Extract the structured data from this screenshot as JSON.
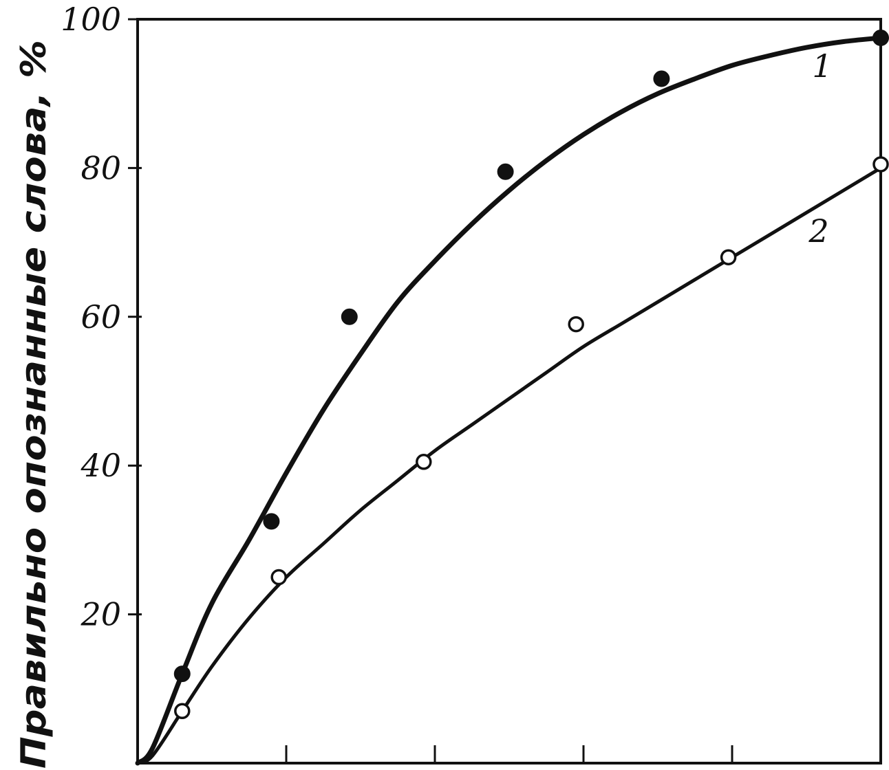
{
  "chart_data": {
    "type": "line",
    "title": "",
    "xlabel": "",
    "ylabel": "Правильно опознанные слова, %",
    "xlim": [
      0,
      10
    ],
    "ylim": [
      0,
      100
    ],
    "x_ticks": [
      0,
      2,
      4,
      6,
      8,
      10
    ],
    "y_ticks": [
      {
        "value": 20,
        "label": "20"
      },
      {
        "value": 40,
        "label": "40"
      },
      {
        "value": 60,
        "label": "60"
      },
      {
        "value": 80,
        "label": "80"
      },
      {
        "value": 100,
        "label": "100"
      }
    ],
    "grid": false,
    "series": [
      {
        "name": "1",
        "marker": "filled-circle",
        "color": "#111111",
        "points": [
          [
            0.6,
            12
          ],
          [
            1.8,
            32.5
          ],
          [
            2.85,
            60
          ],
          [
            4.95,
            79.5
          ],
          [
            7.05,
            92
          ],
          [
            10,
            97.5
          ]
        ],
        "curve": [
          [
            0,
            0
          ],
          [
            0.2,
            2
          ],
          [
            0.6,
            12
          ],
          [
            1,
            21.5
          ],
          [
            1.5,
            30
          ],
          [
            2,
            39
          ],
          [
            2.5,
            47.5
          ],
          [
            3,
            55
          ],
          [
            3.5,
            62
          ],
          [
            4,
            67.5
          ],
          [
            4.5,
            72.5
          ],
          [
            5,
            77
          ],
          [
            5.5,
            81
          ],
          [
            6,
            84.5
          ],
          [
            6.5,
            87.5
          ],
          [
            7,
            90
          ],
          [
            7.5,
            92
          ],
          [
            8,
            93.8
          ],
          [
            8.5,
            95.1
          ],
          [
            9,
            96.2
          ],
          [
            9.5,
            97
          ],
          [
            10,
            97.5
          ]
        ]
      },
      {
        "name": "2",
        "marker": "open-circle",
        "color": "#111111",
        "points": [
          [
            0.6,
            7
          ],
          [
            1.9,
            25
          ],
          [
            3.85,
            40.5
          ],
          [
            5.9,
            59
          ],
          [
            7.95,
            68
          ],
          [
            10,
            80.5
          ]
        ],
        "curve": [
          [
            0,
            0
          ],
          [
            0.2,
            1
          ],
          [
            0.6,
            7
          ],
          [
            1,
            13
          ],
          [
            1.5,
            19.5
          ],
          [
            2,
            25
          ],
          [
            2.5,
            29.5
          ],
          [
            3,
            34
          ],
          [
            3.5,
            38
          ],
          [
            4,
            42
          ],
          [
            4.5,
            45.5
          ],
          [
            5,
            49
          ],
          [
            5.5,
            52.5
          ],
          [
            6,
            56
          ],
          [
            6.5,
            59
          ],
          [
            7,
            62
          ],
          [
            7.5,
            65
          ],
          [
            8,
            68
          ],
          [
            8.5,
            71
          ],
          [
            9,
            74
          ],
          [
            9.5,
            77
          ],
          [
            10,
            80
          ]
        ]
      }
    ]
  }
}
